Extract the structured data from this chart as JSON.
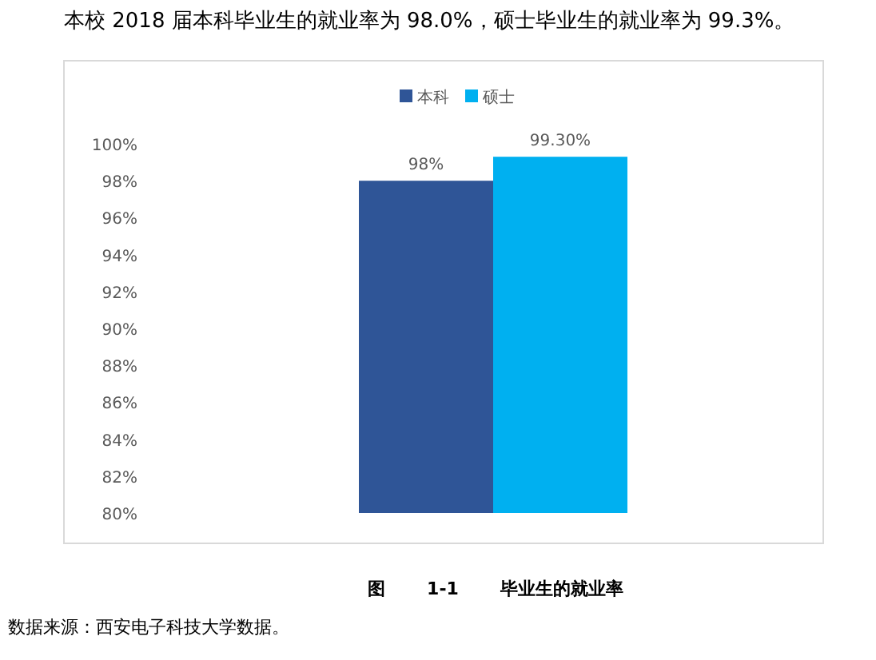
{
  "chart_data": {
    "type": "bar",
    "title": "图 1-1 毕业生的就业率",
    "annotations": [
      "本校 2018 届本科毕业生的就业率为 98.0%，硕士毕业生的就业率为 99.3%。",
      "数据来源：西安电子科技大学数据。"
    ],
    "categories": [
      null
    ],
    "series": [
      {
        "name": "本科",
        "color": "#2f5597",
        "values": [
          98
        ],
        "value_labels": [
          "98%"
        ]
      },
      {
        "name": "硕士",
        "color": "#00b0f0",
        "values": [
          99.3
        ],
        "value_labels": [
          "99.30%"
        ]
      }
    ],
    "ylim": [
      80,
      100
    ],
    "yticks": [
      {
        "value": 80,
        "label": "80%"
      },
      {
        "value": 82,
        "label": "82%"
      },
      {
        "value": 84,
        "label": "84%"
      },
      {
        "value": 86,
        "label": "86%"
      },
      {
        "value": 88,
        "label": "88%"
      },
      {
        "value": 90,
        "label": "90%"
      },
      {
        "value": 92,
        "label": "92%"
      },
      {
        "value": 94,
        "label": "94%"
      },
      {
        "value": 96,
        "label": "96%"
      },
      {
        "value": 98,
        "label": "98%"
      },
      {
        "value": 100,
        "label": "100%"
      }
    ],
    "legend": "top"
  }
}
